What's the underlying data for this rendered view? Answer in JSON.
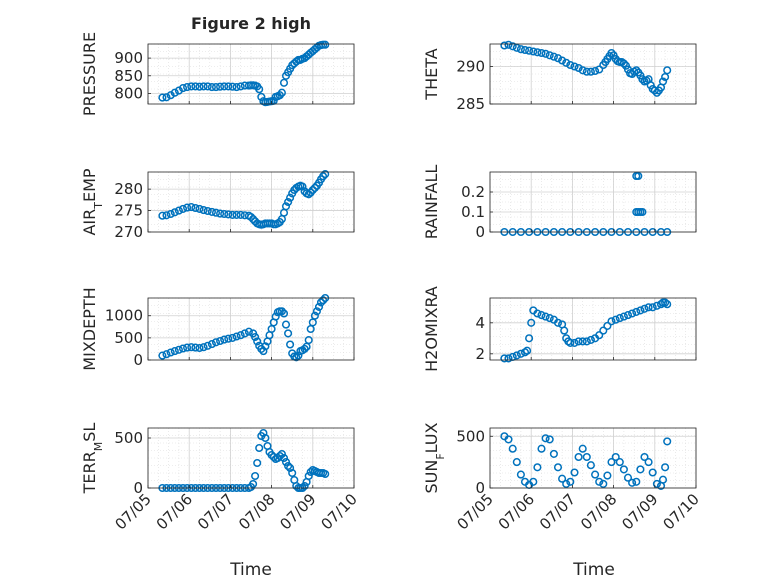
{
  "figure": {
    "title": "Figure 2 high",
    "xlabel": "Time",
    "xticks": [
      "07/05",
      "07/06",
      "07/07",
      "07/08",
      "07/09",
      "07/10"
    ],
    "marker_color": "#0072BD"
  },
  "chart_data": [
    {
      "type": "scatter",
      "ylabel": "PRESSURE",
      "yticks": [
        800,
        850,
        900
      ],
      "ylim": [
        770,
        940
      ],
      "grid": true,
      "x_units": "days since 07/05 00:00",
      "x": [
        0.35,
        0.45,
        0.55,
        0.65,
        0.75,
        0.85,
        0.95,
        1.05,
        1.15,
        1.25,
        1.35,
        1.45,
        1.55,
        1.65,
        1.75,
        1.85,
        1.95,
        2.05,
        2.15,
        2.25,
        2.35,
        2.45,
        2.5,
        2.55,
        2.6,
        2.65,
        2.7,
        2.75,
        2.8,
        2.85,
        2.9,
        2.95,
        3.0,
        3.05,
        3.1,
        3.15,
        3.2,
        3.25,
        3.3,
        3.35,
        3.4,
        3.45,
        3.5,
        3.55,
        3.6,
        3.65,
        3.7,
        3.75,
        3.8,
        3.85,
        3.9,
        3.95,
        4.0,
        4.05,
        4.1,
        4.15,
        4.2,
        4.25,
        4.3
      ],
      "y": [
        788,
        789,
        795,
        802,
        808,
        815,
        818,
        820,
        820,
        819,
        820,
        820,
        818,
        818,
        819,
        820,
        820,
        819,
        818,
        820,
        822,
        822,
        823,
        823,
        822,
        820,
        812,
        790,
        778,
        775,
        776,
        777,
        778,
        779,
        790,
        792,
        795,
        802,
        830,
        850,
        860,
        870,
        880,
        885,
        890,
        895,
        895,
        898,
        900,
        905,
        910,
        915,
        920,
        925,
        930,
        935,
        937,
        938,
        938
      ]
    },
    {
      "type": "scatter",
      "ylabel": "THETA",
      "yticks": [
        285,
        290
      ],
      "ylim": [
        285,
        293
      ],
      "grid": true,
      "x_units": "days since 07/05 00:00",
      "x": [
        0.35,
        0.45,
        0.55,
        0.65,
        0.75,
        0.85,
        0.95,
        1.05,
        1.15,
        1.25,
        1.35,
        1.45,
        1.55,
        1.65,
        1.75,
        1.85,
        1.95,
        2.05,
        2.15,
        2.25,
        2.35,
        2.45,
        2.55,
        2.65,
        2.75,
        2.8,
        2.85,
        2.9,
        2.95,
        3.0,
        3.05,
        3.1,
        3.15,
        3.2,
        3.25,
        3.3,
        3.35,
        3.4,
        3.45,
        3.5,
        3.55,
        3.6,
        3.65,
        3.7,
        3.75,
        3.8,
        3.85,
        3.9,
        3.95,
        4.0,
        4.05,
        4.1,
        4.15,
        4.2,
        4.25,
        4.3
      ],
      "y": [
        292.8,
        292.9,
        292.7,
        292.5,
        292.3,
        292.2,
        292.1,
        292.0,
        291.9,
        291.8,
        291.7,
        291.5,
        291.3,
        291.1,
        290.8,
        290.5,
        290.2,
        290.0,
        289.8,
        289.5,
        289.3,
        289.3,
        289.4,
        289.6,
        290.2,
        290.6,
        291.0,
        291.4,
        291.8,
        291.5,
        291.0,
        290.7,
        290.6,
        290.6,
        290.4,
        290.1,
        289.6,
        289.1,
        289.0,
        289.3,
        289.5,
        289.2,
        288.8,
        288.3,
        288.0,
        288.1,
        288.3,
        287.5,
        287.0,
        286.8,
        286.5,
        286.8,
        287.2,
        288.0,
        288.6,
        289.5
      ]
    },
    {
      "type": "scatter",
      "ylabel": "AIR_TEMP",
      "yticks": [
        270,
        275,
        280
      ],
      "ylim": [
        270,
        284
      ],
      "grid": true,
      "x_units": "days since 07/05 00:00",
      "x": [
        0.35,
        0.45,
        0.55,
        0.65,
        0.75,
        0.85,
        0.95,
        1.05,
        1.15,
        1.25,
        1.35,
        1.45,
        1.55,
        1.65,
        1.75,
        1.85,
        1.95,
        2.05,
        2.15,
        2.25,
        2.35,
        2.45,
        2.5,
        2.55,
        2.6,
        2.65,
        2.7,
        2.75,
        2.8,
        2.85,
        2.9,
        2.95,
        3.0,
        3.05,
        3.1,
        3.15,
        3.2,
        3.25,
        3.3,
        3.35,
        3.4,
        3.45,
        3.5,
        3.55,
        3.6,
        3.65,
        3.7,
        3.75,
        3.8,
        3.85,
        3.9,
        3.95,
        4.0,
        4.05,
        4.1,
        4.15,
        4.2,
        4.25,
        4.3
      ],
      "y": [
        273.8,
        273.9,
        274.2,
        274.6,
        275.0,
        275.4,
        275.7,
        275.8,
        275.6,
        275.4,
        275.1,
        274.9,
        274.7,
        274.5,
        274.3,
        274.2,
        274.1,
        274.0,
        274.0,
        274.0,
        273.9,
        273.8,
        273.5,
        273.0,
        272.5,
        272.0,
        271.8,
        271.7,
        271.8,
        272.0,
        272.0,
        272.0,
        272.0,
        271.8,
        271.8,
        272.0,
        272.3,
        273.0,
        274.5,
        276.0,
        277.0,
        278.0,
        279.0,
        279.8,
        280.3,
        280.6,
        280.8,
        280.6,
        279.5,
        279.0,
        278.8,
        279.2,
        279.8,
        280.3,
        280.8,
        281.5,
        282.3,
        283.0,
        283.5
      ]
    },
    {
      "type": "scatter",
      "ylabel": "RAINFALL",
      "yticks": [
        0,
        0.1,
        0.2
      ],
      "ylim": [
        0,
        0.3
      ],
      "grid": true,
      "x_units": "days since 07/05 00:00",
      "x": [
        0.35,
        0.55,
        0.75,
        0.95,
        1.15,
        1.35,
        1.55,
        1.75,
        1.95,
        2.15,
        2.35,
        2.55,
        2.75,
        2.95,
        3.15,
        3.35,
        3.55,
        3.75,
        3.95,
        4.15,
        4.3,
        3.55,
        3.6,
        3.55,
        3.6,
        3.65,
        3.7
      ],
      "y": [
        0,
        0,
        0,
        0,
        0,
        0,
        0,
        0,
        0,
        0,
        0,
        0,
        0,
        0,
        0,
        0,
        0,
        0,
        0,
        0,
        0,
        0.28,
        0.28,
        0.1,
        0.1,
        0.1,
        0.1
      ]
    },
    {
      "type": "scatter",
      "ylabel": "MIXDEPTH",
      "yticks": [
        0,
        500,
        1000
      ],
      "ylim": [
        0,
        1400
      ],
      "grid": true,
      "x_units": "days since 07/05 00:00",
      "x": [
        0.35,
        0.45,
        0.55,
        0.65,
        0.75,
        0.85,
        0.95,
        1.05,
        1.15,
        1.25,
        1.35,
        1.45,
        1.55,
        1.65,
        1.75,
        1.85,
        1.95,
        2.05,
        2.15,
        2.25,
        2.35,
        2.45,
        2.55,
        2.6,
        2.65,
        2.7,
        2.75,
        2.8,
        2.85,
        2.9,
        2.95,
        3.0,
        3.05,
        3.1,
        3.15,
        3.2,
        3.25,
        3.3,
        3.35,
        3.4,
        3.45,
        3.5,
        3.55,
        3.6,
        3.65,
        3.7,
        3.75,
        3.8,
        3.85,
        3.9,
        3.95,
        4.0,
        4.05,
        4.1,
        4.15,
        4.2,
        4.25,
        4.3
      ],
      "y": [
        100,
        130,
        170,
        200,
        230,
        260,
        280,
        290,
        280,
        270,
        290,
        320,
        360,
        400,
        430,
        460,
        480,
        500,
        530,
        560,
        600,
        640,
        600,
        520,
        420,
        320,
        250,
        200,
        310,
        420,
        560,
        700,
        850,
        980,
        1080,
        1100,
        1100,
        1050,
        800,
        600,
        350,
        150,
        80,
        60,
        100,
        200,
        220,
        250,
        300,
        450,
        700,
        850,
        1000,
        1100,
        1200,
        1300,
        1350,
        1400
      ]
    },
    {
      "type": "scatter",
      "ylabel": "H2OMIXRA",
      "yticks": [
        2,
        4
      ],
      "ylim": [
        1.6,
        5.6
      ],
      "grid": true,
      "x_units": "days since 07/05 00:00",
      "x": [
        0.35,
        0.45,
        0.55,
        0.65,
        0.75,
        0.85,
        0.9,
        0.95,
        1.0,
        1.05,
        1.15,
        1.25,
        1.35,
        1.45,
        1.55,
        1.65,
        1.75,
        1.8,
        1.85,
        1.9,
        1.95,
        2.05,
        2.15,
        2.25,
        2.35,
        2.45,
        2.55,
        2.65,
        2.75,
        2.85,
        2.95,
        3.05,
        3.15,
        3.25,
        3.35,
        3.45,
        3.55,
        3.65,
        3.75,
        3.85,
        3.95,
        4.05,
        4.15,
        4.2,
        4.25,
        4.3
      ],
      "y": [
        1.7,
        1.7,
        1.8,
        1.9,
        2.0,
        2.1,
        2.2,
        3.0,
        4.0,
        4.8,
        4.6,
        4.5,
        4.4,
        4.3,
        4.2,
        4.0,
        3.9,
        3.5,
        3.0,
        2.8,
        2.7,
        2.7,
        2.8,
        2.8,
        2.8,
        2.9,
        3.0,
        3.2,
        3.5,
        3.8,
        4.1,
        4.2,
        4.3,
        4.4,
        4.5,
        4.6,
        4.7,
        4.8,
        4.9,
        5.0,
        5.0,
        5.1,
        5.2,
        5.3,
        5.3,
        5.2
      ]
    },
    {
      "type": "scatter",
      "ylabel": "TERR_MSL",
      "yticks": [
        0,
        500
      ],
      "ylim": [
        0,
        600
      ],
      "grid": true,
      "x_units": "days since 07/05 00:00",
      "x": [
        0.35,
        0.45,
        0.55,
        0.65,
        0.75,
        0.85,
        0.95,
        1.05,
        1.15,
        1.25,
        1.35,
        1.45,
        1.55,
        1.65,
        1.75,
        1.85,
        1.95,
        2.05,
        2.15,
        2.25,
        2.35,
        2.45,
        2.5,
        2.55,
        2.6,
        2.65,
        2.7,
        2.75,
        2.8,
        2.85,
        2.9,
        2.95,
        3.0,
        3.05,
        3.1,
        3.15,
        3.2,
        3.25,
        3.3,
        3.35,
        3.4,
        3.45,
        3.5,
        3.55,
        3.6,
        3.65,
        3.7,
        3.75,
        3.8,
        3.85,
        3.9,
        3.95,
        4.0,
        4.05,
        4.1,
        4.15,
        4.2,
        4.25,
        4.3
      ],
      "y": [
        0,
        0,
        0,
        0,
        0,
        0,
        0,
        0,
        0,
        0,
        0,
        0,
        0,
        0,
        0,
        0,
        0,
        0,
        0,
        0,
        0,
        0,
        10,
        40,
        120,
        250,
        400,
        520,
        550,
        500,
        420,
        360,
        330,
        310,
        290,
        300,
        320,
        340,
        300,
        260,
        220,
        200,
        150,
        80,
        20,
        0,
        0,
        0,
        20,
        60,
        120,
        160,
        180,
        170,
        160,
        150,
        150,
        150,
        140
      ]
    },
    {
      "type": "scatter",
      "ylabel": "SUN_FLUX",
      "yticks": [
        0,
        500
      ],
      "ylim": [
        0,
        580
      ],
      "grid": true,
      "x_units": "days since 07/05 00:00",
      "x": [
        0.35,
        0.45,
        0.55,
        0.65,
        0.75,
        0.85,
        0.95,
        1.05,
        1.15,
        1.25,
        1.35,
        1.45,
        1.55,
        1.65,
        1.75,
        1.85,
        1.95,
        2.05,
        2.15,
        2.25,
        2.35,
        2.45,
        2.55,
        2.65,
        2.75,
        2.85,
        2.95,
        3.05,
        3.15,
        3.25,
        3.35,
        3.45,
        3.55,
        3.65,
        3.75,
        3.85,
        3.95,
        4.05,
        4.15,
        4.2,
        4.25,
        4.3
      ],
      "y": [
        500,
        470,
        380,
        250,
        130,
        60,
        30,
        60,
        200,
        380,
        480,
        470,
        330,
        200,
        90,
        40,
        60,
        150,
        300,
        380,
        300,
        220,
        130,
        60,
        40,
        120,
        250,
        300,
        250,
        180,
        100,
        50,
        60,
        180,
        300,
        250,
        150,
        40,
        20,
        80,
        200,
        450
      ]
    }
  ]
}
